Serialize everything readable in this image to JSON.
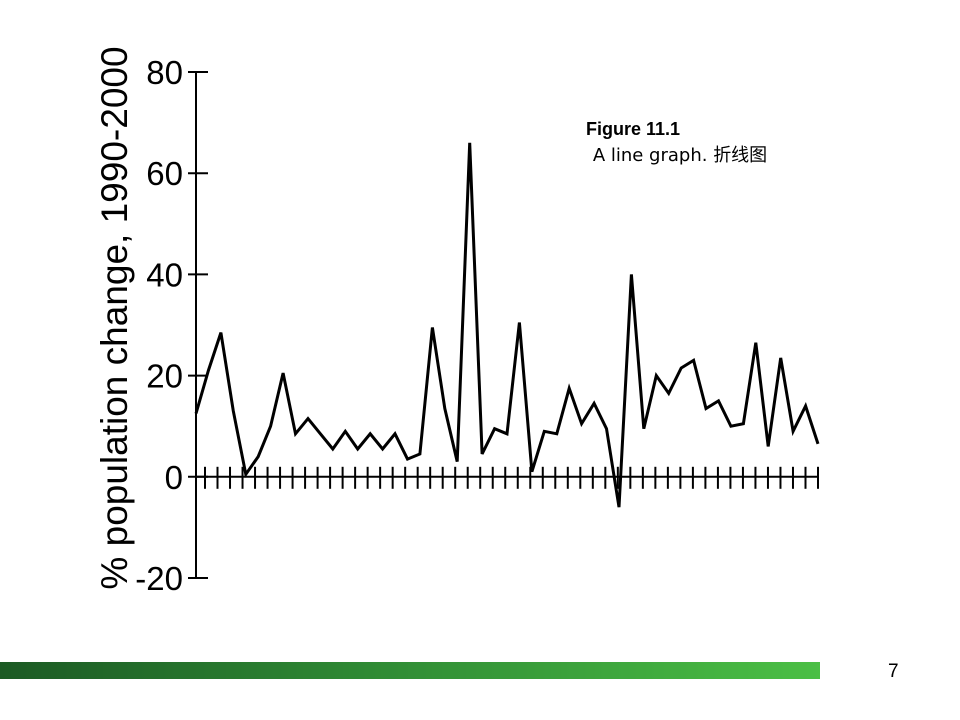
{
  "caption": {
    "title": "Figure 11.1",
    "subtitle": "A line graph. 折线图"
  },
  "page_number": "7",
  "colors": {
    "line": "#000000",
    "footer_bar_dark": "#1c5a24",
    "footer_bar_light": "#4bbf45"
  },
  "chart_data": {
    "type": "line",
    "title": "",
    "xlabel": "",
    "ylabel": "% population change, 1990-2000",
    "ylim": [
      -20,
      80
    ],
    "yticks": [
      -20,
      0,
      20,
      40,
      60,
      80
    ],
    "ytick_labels": [
      "-20",
      "0",
      "20",
      "40",
      "60",
      "80"
    ],
    "xtick_count": 50,
    "grid": false,
    "legend": "none",
    "series": [
      {
        "values": [
          12.5,
          21,
          28.5,
          13,
          0.5,
          4,
          10,
          20.5,
          8.5,
          11.5,
          8.5,
          5.5,
          9,
          5.5,
          8.5,
          5.5,
          8.5,
          3.5,
          4.5,
          29.5,
          13.5,
          3,
          66,
          4.5,
          9.5,
          8.5,
          30.5,
          1,
          9,
          8.5,
          17.5,
          10.5,
          14.5,
          9.5,
          -6,
          40,
          9.5,
          20,
          16.5,
          21.5,
          23,
          13.5,
          15,
          10,
          10.5,
          26.5,
          6,
          23.5,
          9,
          14,
          6.5
        ]
      }
    ]
  }
}
